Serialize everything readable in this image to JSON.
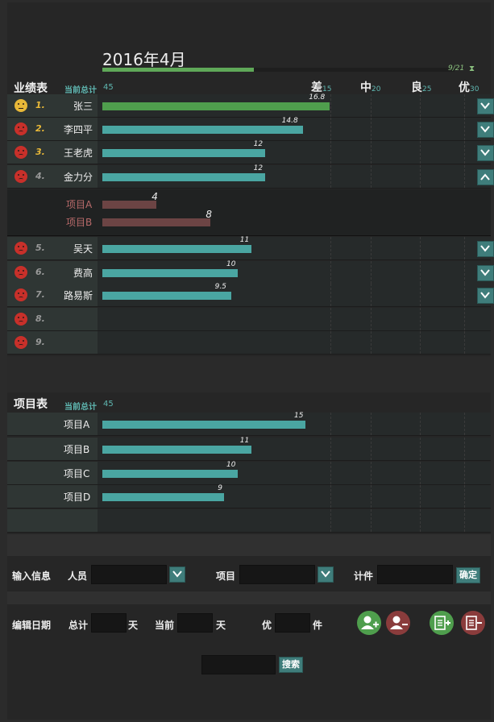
{
  "month": {
    "title": "2016年4月",
    "progress_text": "9/21",
    "progress_fraction": 0.43,
    "hourglass_icon": "hourglass-icon"
  },
  "performance": {
    "title": "业绩表",
    "total_label": "当前总计",
    "total_value": "45",
    "grades": [
      {
        "label": "差",
        "value": "15"
      },
      {
        "label": "中",
        "value": "20"
      },
      {
        "label": "良",
        "value": "25"
      },
      {
        "label": "优",
        "value": "30"
      }
    ],
    "scale_max": 30,
    "rows": [
      {
        "rank": "1.",
        "name": "张三",
        "value": 16.8,
        "label": "16.8",
        "face": "neutral",
        "toggle": "down"
      },
      {
        "rank": "2.",
        "name": "李四平",
        "value": 14.8,
        "label": "14.8",
        "face": "sad",
        "toggle": "down"
      },
      {
        "rank": "3.",
        "name": "王老虎",
        "value": 12,
        "label": "12",
        "face": "sad",
        "toggle": "down"
      },
      {
        "rank": "4.",
        "name": "金力分",
        "value": 12,
        "label": "12",
        "face": "sad",
        "toggle": "up"
      },
      {
        "rank": "5.",
        "name": "吴天",
        "value": 11,
        "label": "11",
        "face": "sad",
        "toggle": "down"
      },
      {
        "rank": "6.",
        "name": "费高",
        "value": 10,
        "label": "10",
        "face": "sad",
        "toggle": "down"
      },
      {
        "rank": "7.",
        "name": "路易斯",
        "value": 9.5,
        "label": "9.5",
        "face": "sad",
        "toggle": "down"
      },
      {
        "rank": "8.",
        "name": "",
        "face": "sad"
      },
      {
        "rank": "9.",
        "name": "",
        "face": "sad"
      }
    ],
    "expanded": [
      {
        "name": "项目A",
        "value": 4,
        "label": "4"
      },
      {
        "name": "项目B",
        "value": 8,
        "label": "8"
      }
    ]
  },
  "projects": {
    "title": "项目表",
    "total_label": "当前总计",
    "total_value": "45",
    "rows": [
      {
        "name": "项目A",
        "value": 15,
        "label": "15"
      },
      {
        "name": "项目B",
        "value": 11,
        "label": "11"
      },
      {
        "name": "项目C",
        "value": 10,
        "label": "10"
      },
      {
        "name": "项目D",
        "value": 9,
        "label": "9"
      }
    ]
  },
  "input_form": {
    "title": "输入信息",
    "person_label": "人员",
    "project_label": "项目",
    "count_label": "计件",
    "confirm_label": "确定"
  },
  "edit_form": {
    "title": "编辑日期",
    "total_label": "总计",
    "total_unit": "天",
    "current_label": "当前",
    "current_unit": "天",
    "excellent_label": "优",
    "excellent_unit": "件"
  },
  "search": {
    "button_label": "搜索"
  },
  "colors": {
    "accent": "#4aa6a2",
    "good": "#4f9e4d",
    "bad": "#c8302a"
  }
}
